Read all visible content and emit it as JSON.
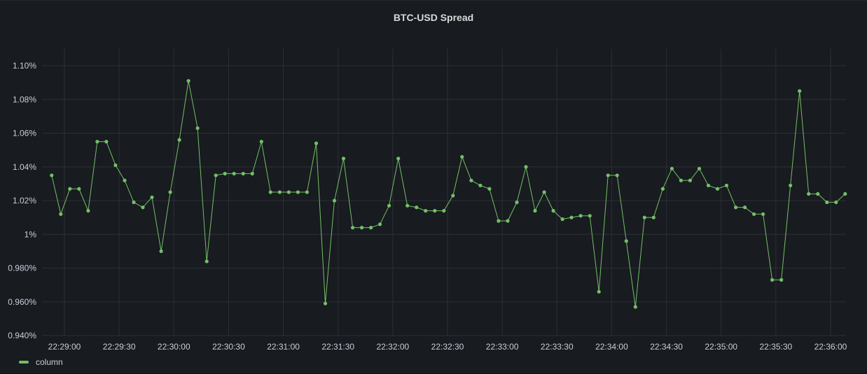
{
  "panel": {
    "title": "BTC-USD Spread"
  },
  "colors": {
    "series": "#73bf69",
    "grid": "#2c2f35",
    "background": "#181b1f"
  },
  "chart_data": {
    "type": "line",
    "title": "BTC-USD Spread",
    "xlabel": "",
    "ylabel": "",
    "grid": true,
    "legend_position": "bottom-left",
    "x_range": [
      "22:28:53",
      "22:36:10"
    ],
    "ylim": [
      0.94,
      1.11
    ],
    "y_unit": "%",
    "y_ticks": [
      {
        "value": 0.94,
        "label": "0.940%"
      },
      {
        "value": 0.96,
        "label": "0.960%"
      },
      {
        "value": 0.98,
        "label": "0.980%"
      },
      {
        "value": 1.0,
        "label": "1%"
      },
      {
        "value": 1.02,
        "label": "1.02%"
      },
      {
        "value": 1.04,
        "label": "1.04%"
      },
      {
        "value": 1.06,
        "label": "1.06%"
      },
      {
        "value": 1.08,
        "label": "1.08%"
      },
      {
        "value": 1.1,
        "label": "1.10%"
      }
    ],
    "x_ticks": [
      "22:29:00",
      "22:29:30",
      "22:30:00",
      "22:30:30",
      "22:31:00",
      "22:31:30",
      "22:32:00",
      "22:32:30",
      "22:33:00",
      "22:33:30",
      "22:34:00",
      "22:34:30",
      "22:35:00",
      "22:35:30",
      "22:36:00"
    ],
    "series": [
      {
        "name": "column",
        "points": [
          [
            "22:28:53",
            1.035
          ],
          [
            "22:28:58",
            1.012
          ],
          [
            "22:29:03",
            1.027
          ],
          [
            "22:29:08",
            1.027
          ],
          [
            "22:29:13",
            1.014
          ],
          [
            "22:29:18",
            1.055
          ],
          [
            "22:29:23",
            1.055
          ],
          [
            "22:29:28",
            1.041
          ],
          [
            "22:29:33",
            1.032
          ],
          [
            "22:29:38",
            1.019
          ],
          [
            "22:29:43",
            1.016
          ],
          [
            "22:29:48",
            1.022
          ],
          [
            "22:29:53",
            0.99
          ],
          [
            "22:29:58",
            1.025
          ],
          [
            "22:30:03",
            1.056
          ],
          [
            "22:30:08",
            1.091
          ],
          [
            "22:30:13",
            1.063
          ],
          [
            "22:30:18",
            0.984
          ],
          [
            "22:30:23",
            1.035
          ],
          [
            "22:30:28",
            1.036
          ],
          [
            "22:30:33",
            1.036
          ],
          [
            "22:30:38",
            1.036
          ],
          [
            "22:30:43",
            1.036
          ],
          [
            "22:30:48",
            1.055
          ],
          [
            "22:30:53",
            1.025
          ],
          [
            "22:30:58",
            1.025
          ],
          [
            "22:31:03",
            1.025
          ],
          [
            "22:31:08",
            1.025
          ],
          [
            "22:31:13",
            1.025
          ],
          [
            "22:31:18",
            1.054
          ],
          [
            "22:31:23",
            0.959
          ],
          [
            "22:31:28",
            1.02
          ],
          [
            "22:31:33",
            1.045
          ],
          [
            "22:31:38",
            1.004
          ],
          [
            "22:31:43",
            1.004
          ],
          [
            "22:31:48",
            1.004
          ],
          [
            "22:31:53",
            1.006
          ],
          [
            "22:31:58",
            1.017
          ],
          [
            "22:32:03",
            1.045
          ],
          [
            "22:32:08",
            1.017
          ],
          [
            "22:32:13",
            1.016
          ],
          [
            "22:32:18",
            1.014
          ],
          [
            "22:32:23",
            1.014
          ],
          [
            "22:32:28",
            1.014
          ],
          [
            "22:32:33",
            1.023
          ],
          [
            "22:32:38",
            1.046
          ],
          [
            "22:32:43",
            1.032
          ],
          [
            "22:32:48",
            1.029
          ],
          [
            "22:32:53",
            1.027
          ],
          [
            "22:32:58",
            1.008
          ],
          [
            "22:33:03",
            1.008
          ],
          [
            "22:33:08",
            1.019
          ],
          [
            "22:33:13",
            1.04
          ],
          [
            "22:33:18",
            1.014
          ],
          [
            "22:33:23",
            1.025
          ],
          [
            "22:33:28",
            1.014
          ],
          [
            "22:33:33",
            1.009
          ],
          [
            "22:33:38",
            1.01
          ],
          [
            "22:33:43",
            1.011
          ],
          [
            "22:33:48",
            1.011
          ],
          [
            "22:33:53",
            0.966
          ],
          [
            "22:33:58",
            1.035
          ],
          [
            "22:34:03",
            1.035
          ],
          [
            "22:34:08",
            0.996
          ],
          [
            "22:34:13",
            0.957
          ],
          [
            "22:34:18",
            1.01
          ],
          [
            "22:34:23",
            1.01
          ],
          [
            "22:34:28",
            1.027
          ],
          [
            "22:34:33",
            1.039
          ],
          [
            "22:34:38",
            1.032
          ],
          [
            "22:34:43",
            1.032
          ],
          [
            "22:34:48",
            1.039
          ],
          [
            "22:34:53",
            1.029
          ],
          [
            "22:34:58",
            1.027
          ],
          [
            "22:35:03",
            1.029
          ],
          [
            "22:35:08",
            1.016
          ],
          [
            "22:35:13",
            1.016
          ],
          [
            "22:35:18",
            1.012
          ],
          [
            "22:35:23",
            1.012
          ],
          [
            "22:35:28",
            0.973
          ],
          [
            "22:35:33",
            0.973
          ],
          [
            "22:35:38",
            1.029
          ],
          [
            "22:35:43",
            1.085
          ],
          [
            "22:35:48",
            1.024
          ],
          [
            "22:35:53",
            1.024
          ],
          [
            "22:35:58",
            1.019
          ],
          [
            "22:36:03",
            1.019
          ],
          [
            "22:36:08",
            1.024
          ]
        ]
      }
    ]
  },
  "legend": {
    "label": "column"
  }
}
